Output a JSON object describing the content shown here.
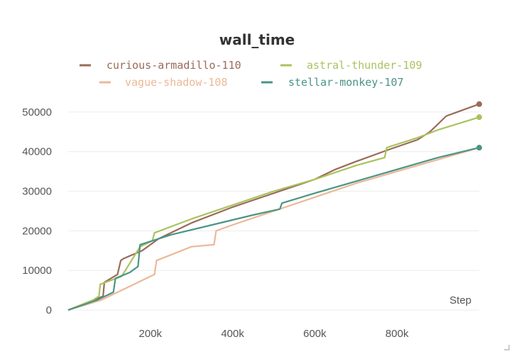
{
  "chart_data": {
    "type": "line",
    "title": "wall_time",
    "xlabel": "Step",
    "ylabel": "",
    "xlim": [
      0,
      1000000
    ],
    "ylim": [
      0,
      55000
    ],
    "x_ticks": [
      200000,
      400000,
      600000,
      800000
    ],
    "x_tick_labels": [
      "200k",
      "400k",
      "600k",
      "800k"
    ],
    "y_ticks": [
      0,
      10000,
      20000,
      30000,
      40000,
      50000
    ],
    "y_tick_labels": [
      "0",
      "10000",
      "20000",
      "30000",
      "40000",
      "50000"
    ],
    "grid": true,
    "legend_position": "top",
    "series": [
      {
        "name": "curious-armadillo-110",
        "color": "#9b6a5a",
        "x": [
          0,
          50000,
          85000,
          88000,
          120000,
          128000,
          135000,
          180000,
          200000,
          220000,
          260000,
          300000,
          400000,
          500000,
          600000,
          650000,
          700000,
          780000,
          850000,
          880000,
          920000,
          1000000
        ],
        "y": [
          0,
          2000,
          3500,
          7000,
          9000,
          12500,
          13000,
          15000,
          16500,
          18000,
          20000,
          22000,
          26000,
          29500,
          33000,
          35500,
          37500,
          40500,
          43000,
          45000,
          49000,
          52000
        ]
      },
      {
        "name": "astral-thunder-109",
        "color": "#a9c35e",
        "x": [
          0,
          60000,
          75000,
          78000,
          130000,
          175000,
          205000,
          210000,
          300000,
          400000,
          500000,
          600000,
          700000,
          770000,
          775000,
          850000,
          900000,
          1000000
        ],
        "y": [
          0,
          2500,
          3500,
          6500,
          8500,
          16000,
          17500,
          19500,
          23000,
          26500,
          30000,
          33000,
          36500,
          38500,
          41000,
          43500,
          45500,
          48700
        ]
      },
      {
        "name": "vague-shadow-108",
        "color": "#ecb897",
        "x": [
          0,
          80000,
          130000,
          210000,
          215000,
          300000,
          355000,
          360000,
          400000,
          500000,
          600000,
          700000,
          800000,
          900000,
          1000000
        ],
        "y": [
          0,
          2500,
          5000,
          9000,
          12500,
          16000,
          16500,
          20000,
          21500,
          25000,
          28500,
          32000,
          35000,
          38000,
          41000
        ]
      },
      {
        "name": "stellar-monkey-107",
        "color": "#4a9585",
        "x": [
          0,
          70000,
          110000,
          115000,
          150000,
          170000,
          175000,
          250000,
          350000,
          450000,
          515000,
          520000,
          600000,
          700000,
          800000,
          900000,
          1000000
        ],
        "y": [
          0,
          2500,
          4500,
          8000,
          9500,
          11000,
          16500,
          19000,
          21500,
          24000,
          25500,
          27000,
          29500,
          32500,
          35500,
          38500,
          41000
        ]
      }
    ]
  }
}
